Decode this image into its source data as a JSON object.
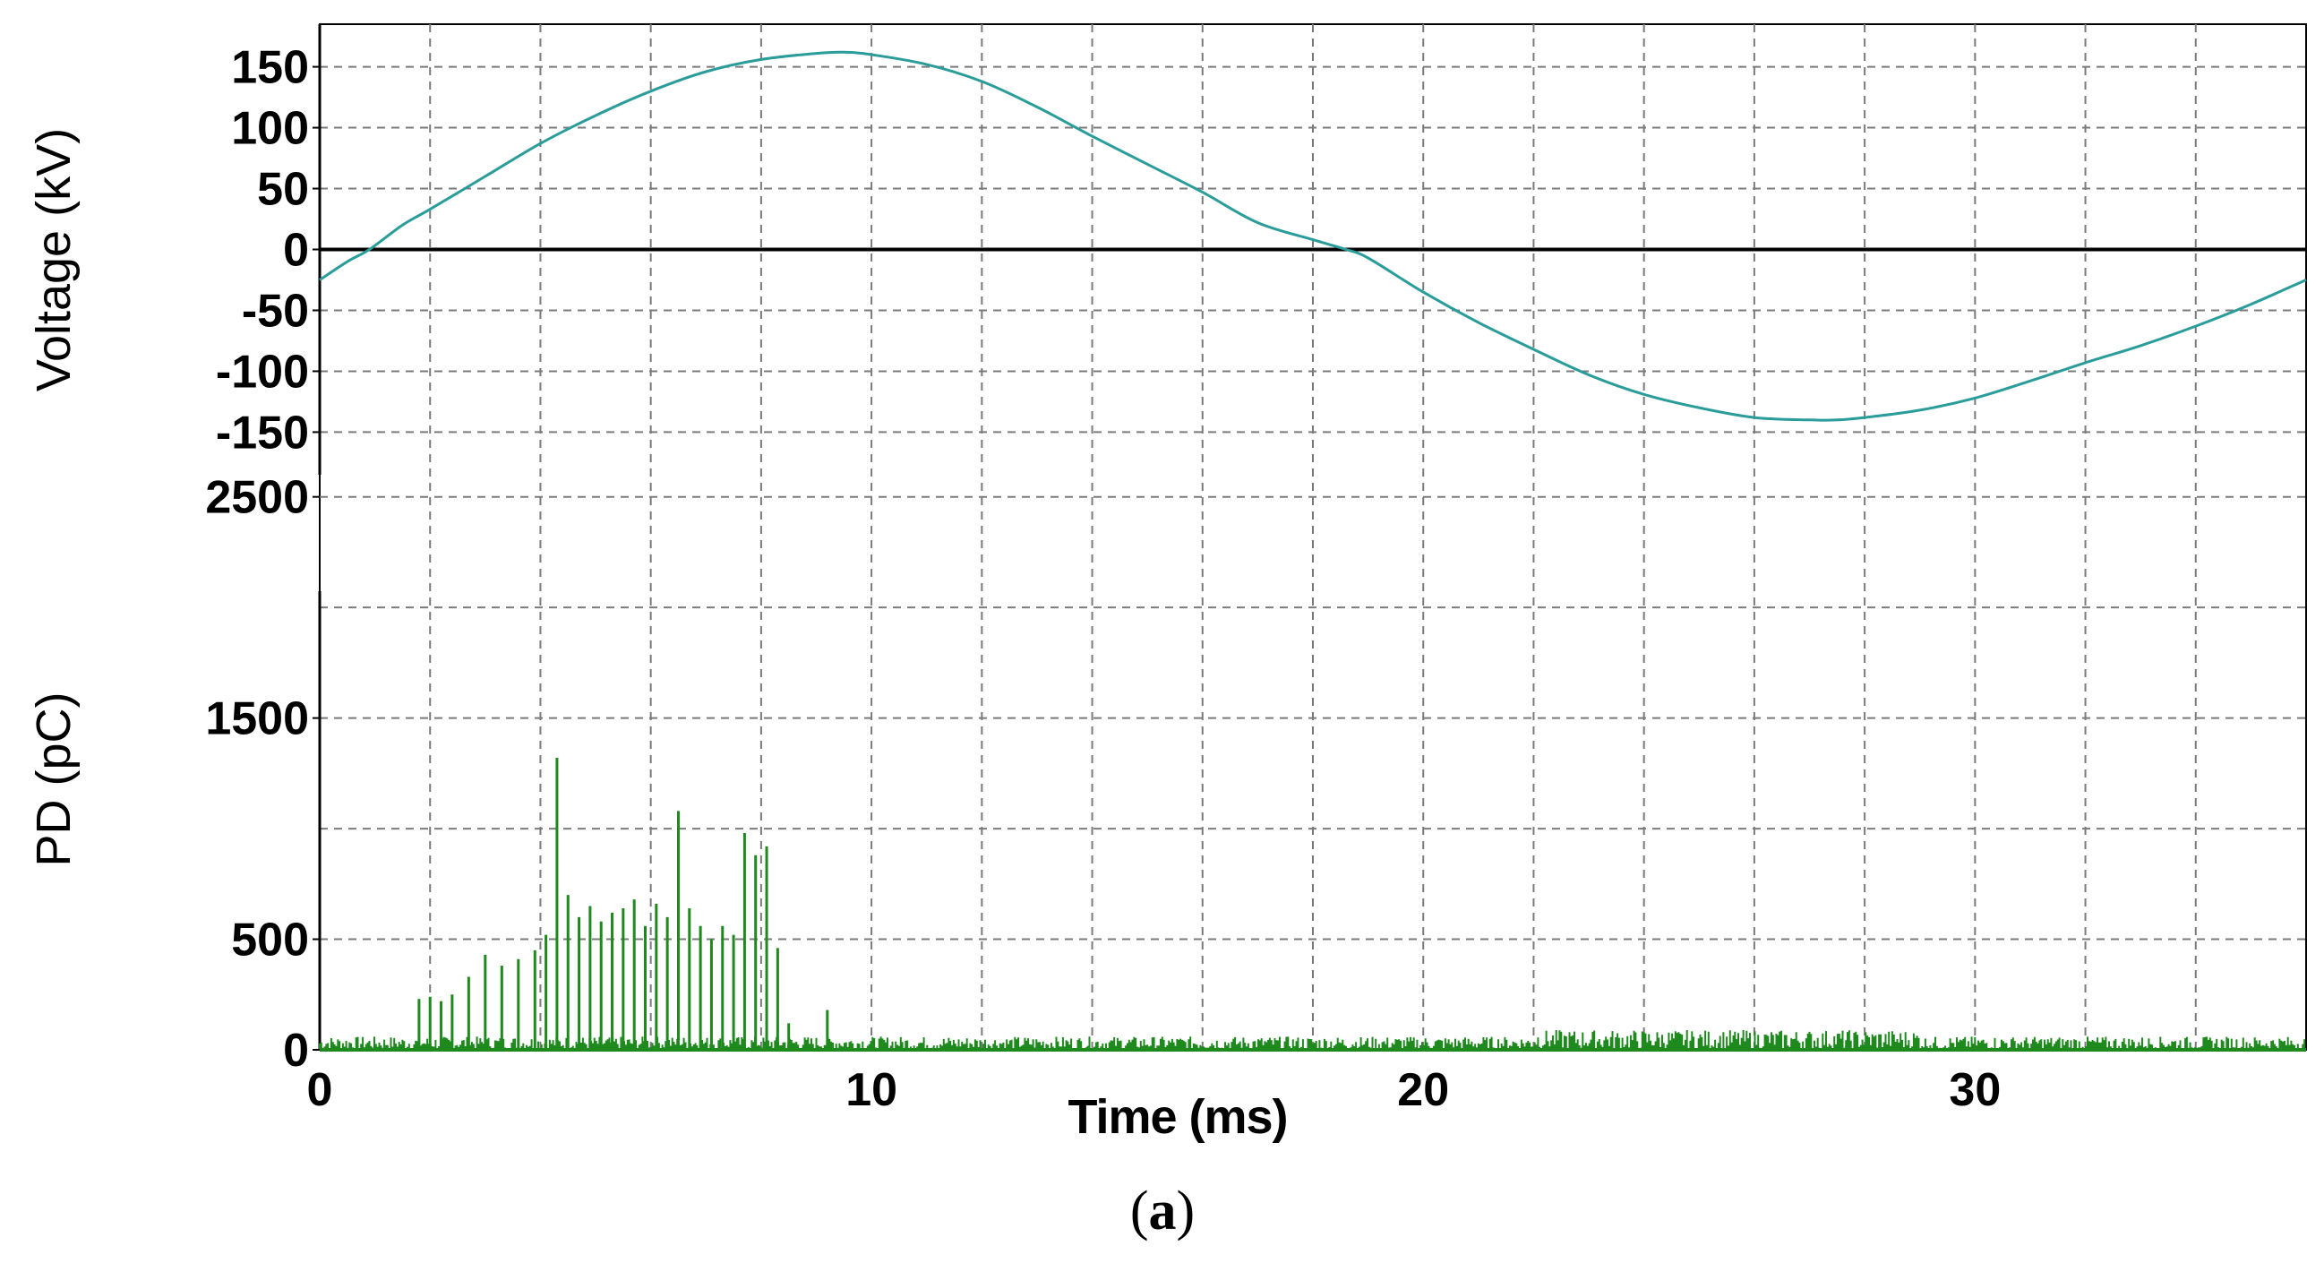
{
  "panel_label": "a",
  "chart_data": [
    {
      "type": "line",
      "title": "",
      "ylabel": "Voltage (kV)",
      "xlabel": "Time (ms)",
      "xlim": [
        0,
        36
      ],
      "ylim": [
        -185,
        185
      ],
      "yticks": [
        "150",
        "100",
        "50",
        "0",
        "-50",
        "-100",
        "-150"
      ],
      "ytick_values": [
        150,
        100,
        50,
        0,
        -50,
        -100,
        -150
      ],
      "grid": true,
      "zero_line": true,
      "series": [
        {
          "x": [
            0,
            0.5,
            0.9,
            1.5,
            2,
            3,
            4,
            5,
            6,
            7,
            8,
            9,
            9.5,
            10,
            11,
            12,
            13,
            14,
            15,
            16,
            17,
            18,
            18.6,
            19,
            20,
            21,
            22,
            23,
            24,
            25,
            26,
            27,
            27.5,
            28,
            29,
            30,
            31,
            32,
            33,
            34,
            35,
            36
          ],
          "y": [
            -25,
            -10,
            0,
            20,
            33,
            60,
            87,
            110,
            130,
            146,
            156,
            161,
            162,
            160,
            152,
            138,
            117,
            93,
            70,
            47,
            22,
            8,
            0,
            -7,
            -35,
            -60,
            -82,
            -103,
            -119,
            -130,
            -138,
            -140,
            -140,
            -138,
            -132,
            -122,
            -108,
            -93,
            -79,
            -63,
            -45,
            -25
          ]
        }
      ],
      "colors": {
        "series": "#2a9d9a",
        "grid": "#7a7a7a",
        "zero": "#000000"
      }
    },
    {
      "type": "bar",
      "title": "",
      "ylabel": "PD (pC)",
      "xlabel": "Time (ms)",
      "xlim": [
        0,
        36
      ],
      "ylim": [
        0,
        2600
      ],
      "xticks": [
        "0",
        "10",
        "20",
        "30"
      ],
      "xtick_values": [
        0,
        10,
        20,
        30
      ],
      "yticks": [
        "2500",
        "1500",
        "500",
        "0"
      ],
      "ytick_values": [
        2500,
        1500,
        500,
        0
      ],
      "grid": true,
      "series": [
        {
          "x": [
            1.8,
            2.0,
            2.2,
            2.4,
            2.7,
            3.0,
            3.3,
            3.6,
            3.9,
            4.1,
            4.3,
            4.5,
            4.7,
            4.9,
            5.1,
            5.3,
            5.5,
            5.7,
            5.9,
            6.1,
            6.3,
            6.5,
            6.7,
            6.9,
            7.1,
            7.3,
            7.5,
            7.7,
            7.9,
            8.1,
            8.3,
            8.5,
            9.2
          ],
          "y": [
            230,
            240,
            220,
            250,
            330,
            430,
            380,
            410,
            450,
            520,
            1320,
            700,
            600,
            650,
            580,
            620,
            640,
            680,
            560,
            660,
            600,
            1080,
            640,
            560,
            500,
            560,
            520,
            980,
            880,
            920,
            460,
            120,
            180
          ]
        }
      ],
      "noise_level": 60,
      "colors": {
        "series": "#1e8a1e",
        "grid": "#7a7a7a"
      }
    }
  ]
}
